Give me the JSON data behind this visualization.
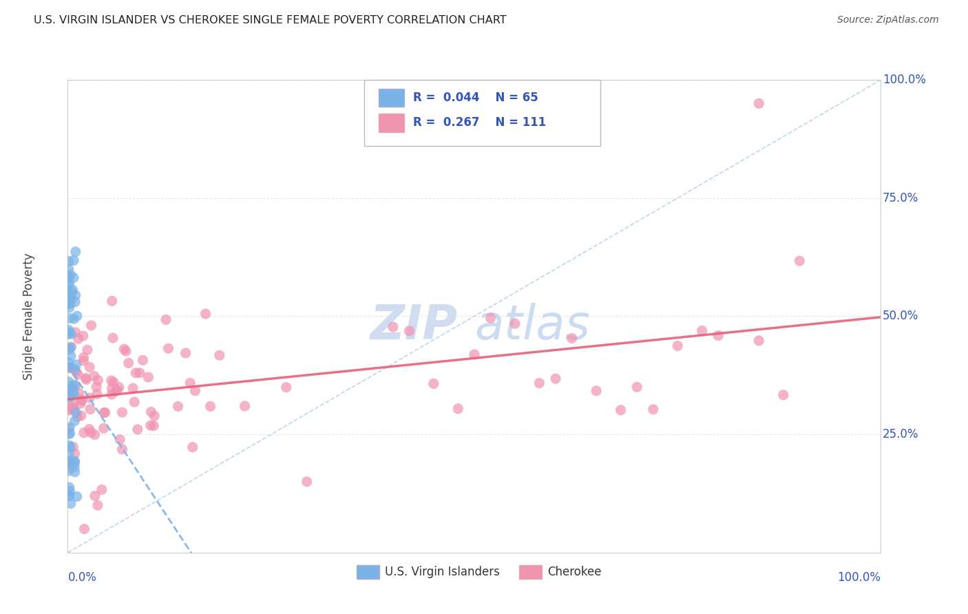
{
  "title": "U.S. VIRGIN ISLANDER VS CHEROKEE SINGLE FEMALE POVERTY CORRELATION CHART",
  "source": "Source: ZipAtlas.com",
  "ylabel": "Single Female Poverty",
  "legend_label1": "U.S. Virgin Islanders",
  "legend_label2": "Cherokee",
  "R1": 0.044,
  "N1": 65,
  "R2": 0.267,
  "N2": 111,
  "color1": "#7ab3e8",
  "color2": "#f093b0",
  "line1_color": "#7ab3e8",
  "line2_color": "#e8607a",
  "ref_line_color": "#aaccee",
  "label_color": "#3355bb",
  "background_color": "#ffffff",
  "grid_color": "#e8e8e8",
  "watermark_color": "#d0ddf0"
}
